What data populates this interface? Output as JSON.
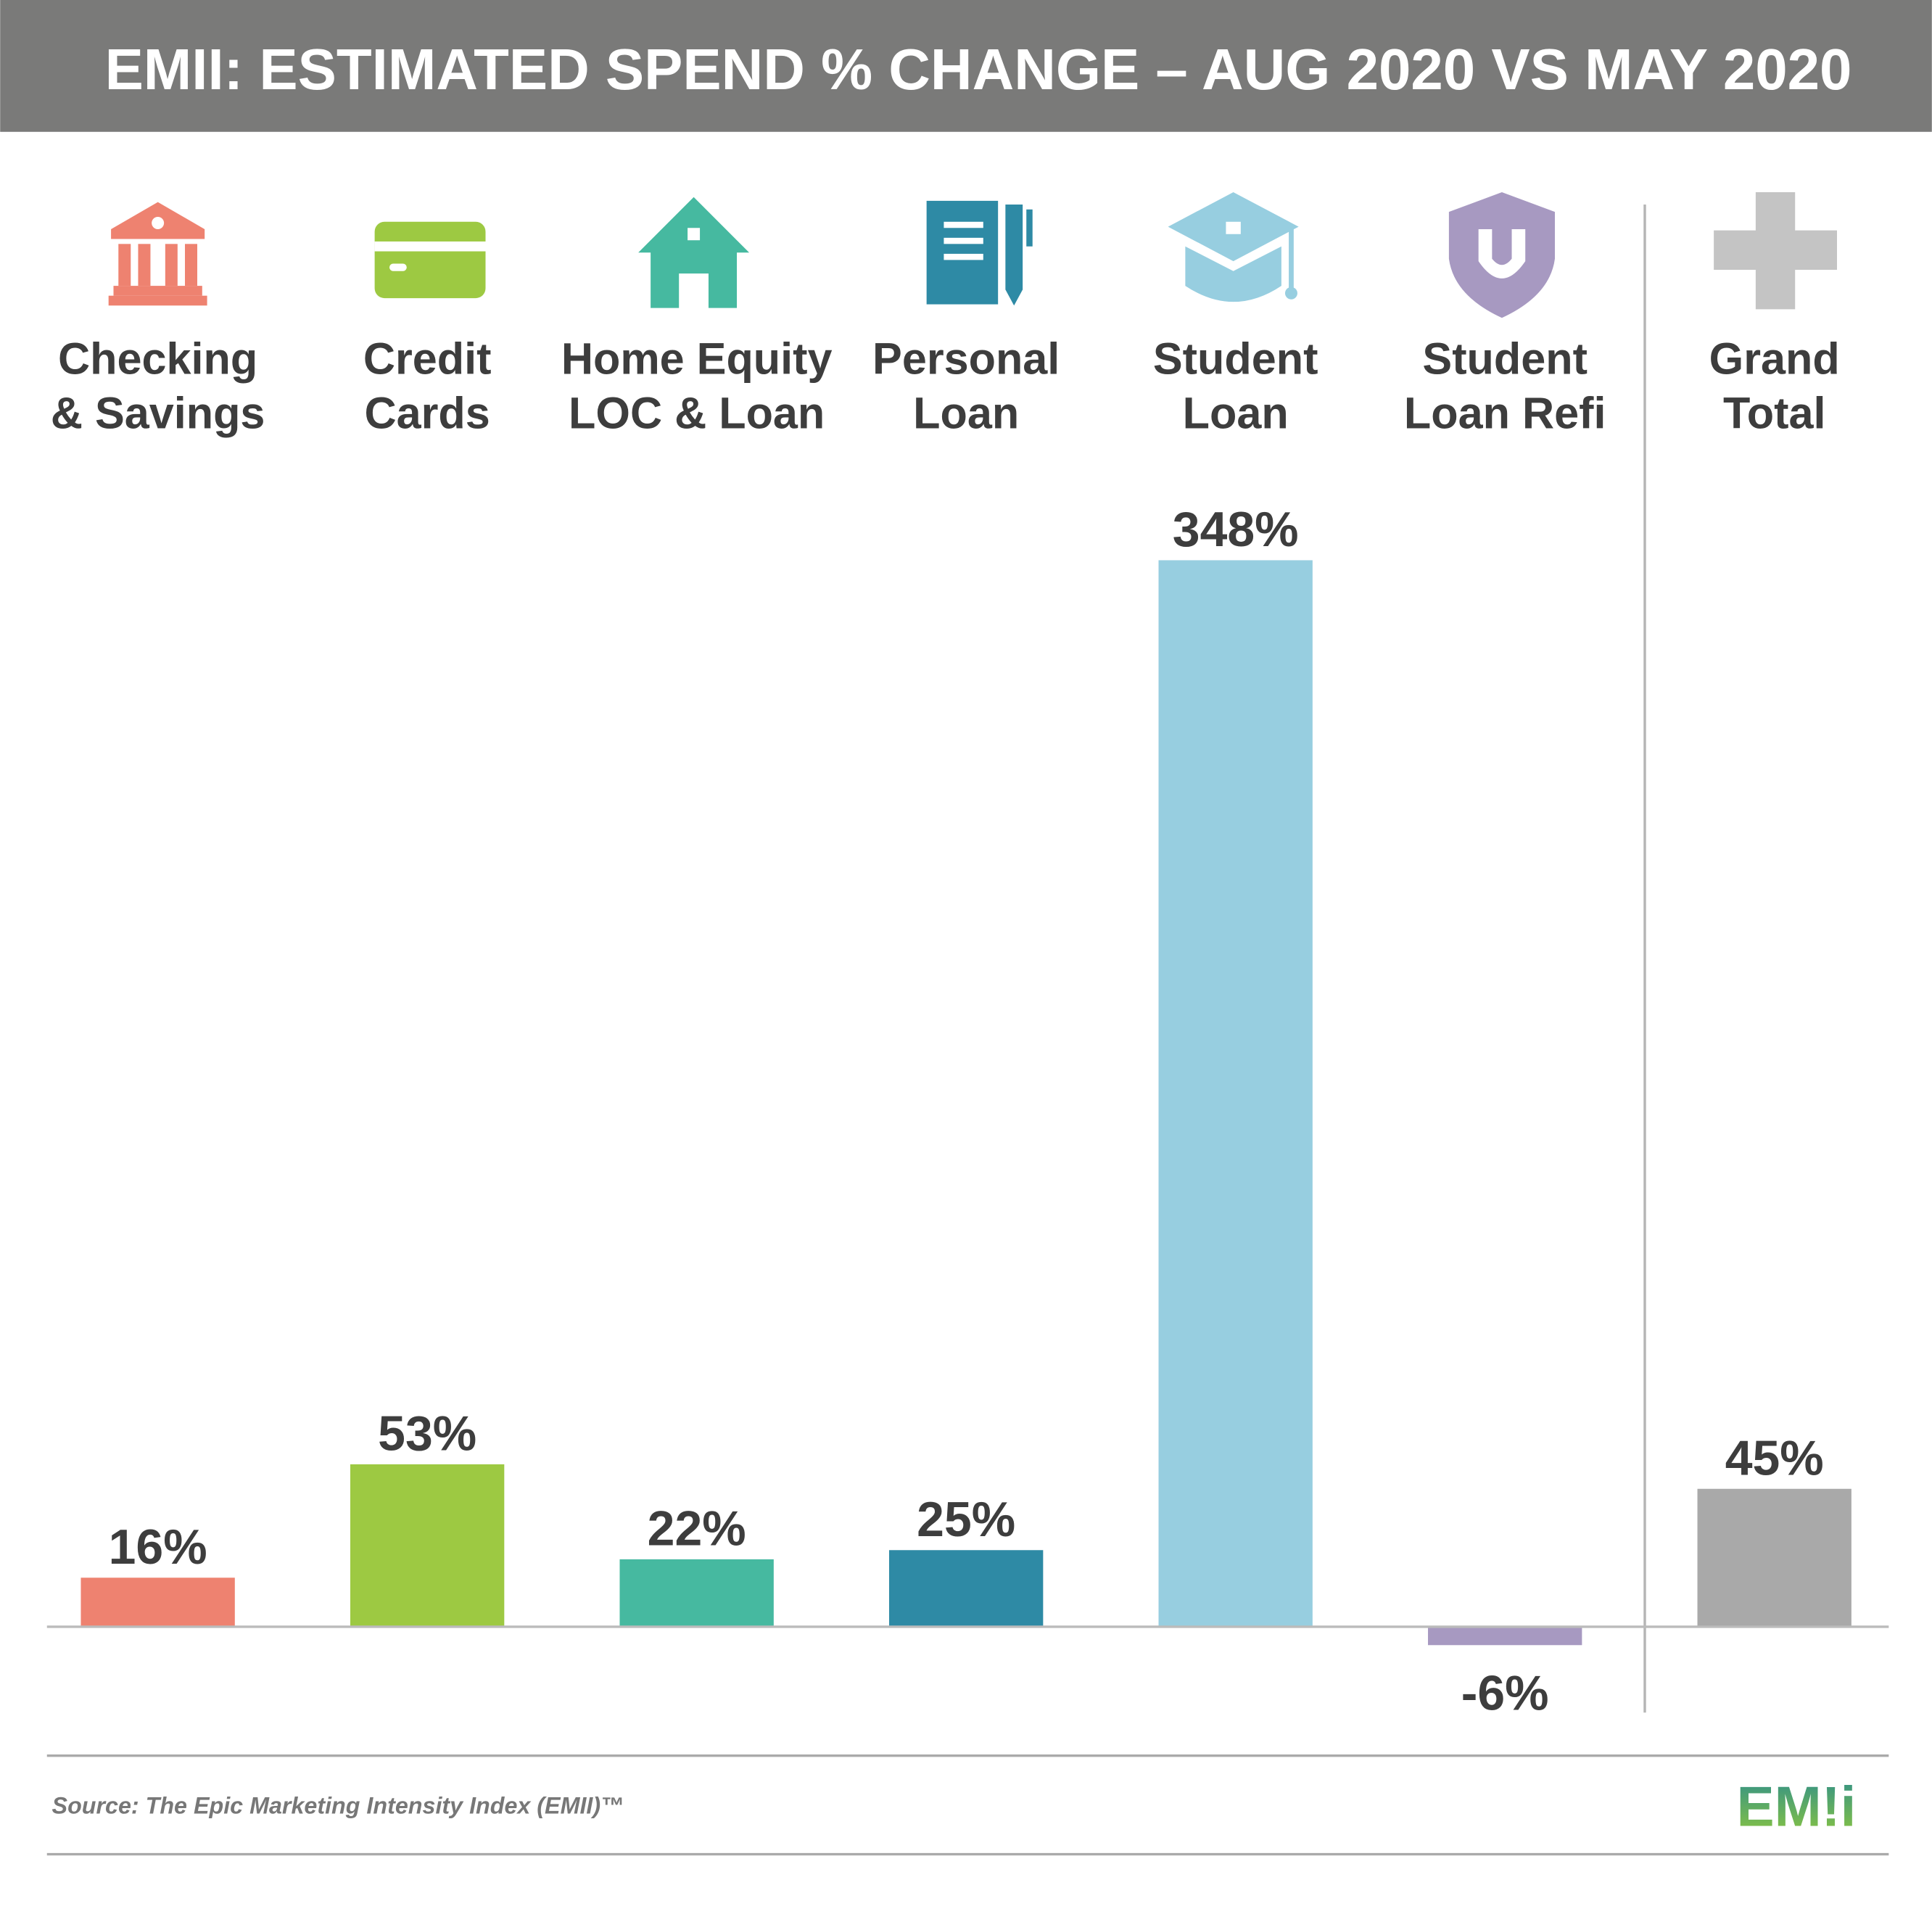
{
  "chart_data": {
    "type": "bar",
    "title": "EMII: ESTIMATED SPEND % CHANGE – AUG 2020 VS MAY 2020",
    "categories": [
      [
        "Checking",
        "& Savings"
      ],
      [
        "Credit",
        "Cards"
      ],
      [
        "Home Equity",
        "LOC & Loan"
      ],
      [
        "Personal",
        "Loan"
      ],
      [
        "Student",
        "Loan"
      ],
      [
        "Student",
        "Loan Refi"
      ],
      [
        "Grand",
        "Total"
      ]
    ],
    "values": [
      16,
      53,
      22,
      25,
      348,
      -6,
      45
    ],
    "value_labels": [
      "16%",
      "53%",
      "22%",
      "25%",
      "348%",
      "-6%",
      "45%"
    ],
    "colors": [
      "#ee8270",
      "#9dc942",
      "#46b9a0",
      "#2e8aa5",
      "#97cee0",
      "#a799c1",
      "#a9a9a9"
    ],
    "ylim": [
      -28,
      370
    ],
    "source": "Source: The Epic Marketing Intensity Index (EMII)™",
    "logo": "EM!i"
  }
}
